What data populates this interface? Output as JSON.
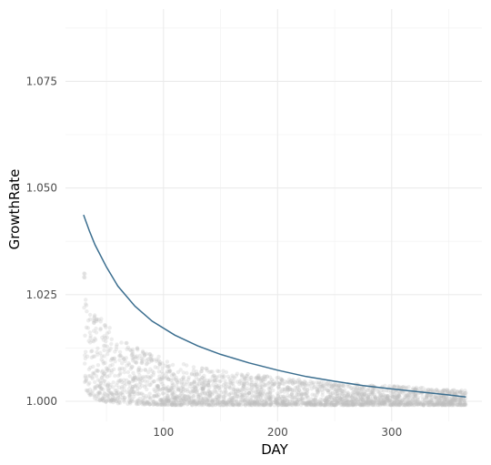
{
  "chart_data": {
    "type": "scatter",
    "title": "",
    "xlabel": "DAY",
    "ylabel": "GrowthRate",
    "xlim": [
      0,
      380
    ],
    "ylim": [
      0.9935,
      1.1035
    ],
    "x_ticks": [
      100,
      200,
      300
    ],
    "x_tick_labels": [
      "100",
      "200",
      "300"
    ],
    "y_ticks": [
      1.0,
      1.025,
      1.05,
      1.075
    ],
    "y_tick_labels": [
      "1.000",
      "1.025",
      "1.050",
      "1.075"
    ],
    "grid": true,
    "legend": "none",
    "series": [
      {
        "type": "scatter",
        "color": "#bfbfbf",
        "envelope": {
          "x": [
            30,
            35,
            40,
            50,
            60,
            75,
            90,
            110,
            130,
            150,
            175,
            200,
            225,
            250,
            275,
            300,
            325,
            350,
            365
          ],
          "upper": [
            1.033,
            1.0245,
            1.021,
            1.018,
            1.0155,
            1.013,
            1.011,
            1.0095,
            1.0082,
            1.0072,
            1.0064,
            1.0057,
            1.005,
            1.0045,
            1.004,
            1.0036,
            1.0032,
            1.0028,
            1.0026
          ],
          "lower": [
            1.0035,
            1.0015,
            1.0005,
            0.9998,
            0.9995,
            0.9993,
            0.9992,
            0.9991,
            0.9991,
            0.9991,
            0.9991,
            0.9991,
            0.9991,
            0.9991,
            0.9991,
            0.9991,
            0.9991,
            0.9991,
            0.9991
          ]
        }
      },
      {
        "type": "line",
        "color": "#3b6e8f",
        "x": [
          30,
          35,
          40,
          50,
          60,
          75,
          90,
          110,
          130,
          150,
          175,
          200,
          225,
          250,
          275,
          300,
          325,
          350,
          365
        ],
        "y": [
          1.0437,
          1.04,
          1.0367,
          1.0315,
          1.027,
          1.0223,
          1.0188,
          1.0155,
          1.013,
          1.011,
          1.009,
          1.0073,
          1.0058,
          1.0047,
          1.0037,
          1.0029,
          1.0022,
          1.0015,
          1.001
        ]
      }
    ]
  }
}
